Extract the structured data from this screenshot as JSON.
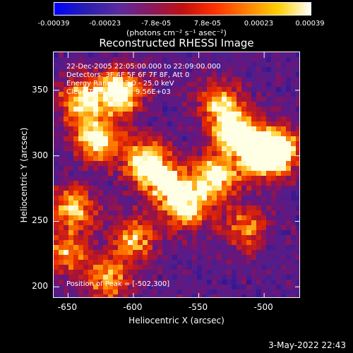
{
  "colorbar": {
    "ticks": [
      "-0.00039",
      "-0.00023",
      "-7.8e-05",
      "7.8e-05",
      "0.00023",
      "0.00039"
    ],
    "units": "(photons cm⁻² s⁻¹ asec⁻²)",
    "colormap": [
      "#0000ff",
      "#2a1fb0",
      "#5a2aa0",
      "#8a1860",
      "#c01010",
      "#ff3000",
      "#ff8000",
      "#ffd000",
      "#ffffff"
    ]
  },
  "chart_data": {
    "type": "heatmap",
    "title": "Reconstructed RHESSI Image",
    "xlabel": "Heliocentric X (arcsec)",
    "ylabel": "Heliocentric Y (arcsec)",
    "xlim": [
      -661,
      -472
    ],
    "ylim": [
      191,
      379
    ],
    "xticks": [
      "-650",
      "-600",
      "-550",
      "-500"
    ],
    "yticks": [
      "200",
      "250",
      "300",
      "350"
    ],
    "peak": [
      -502,
      300
    ],
    "bright_regions": [
      {
        "x": -610,
        "y": 348,
        "intensity": 0.9
      },
      {
        "x": -640,
        "y": 342,
        "intensity": 0.75
      },
      {
        "x": -628,
        "y": 312,
        "intensity": 0.85
      },
      {
        "x": -592,
        "y": 296,
        "intensity": 0.8
      },
      {
        "x": -575,
        "y": 280,
        "intensity": 0.7
      },
      {
        "x": -560,
        "y": 260,
        "intensity": 0.8
      },
      {
        "x": -538,
        "y": 283,
        "intensity": 0.85
      },
      {
        "x": -522,
        "y": 318,
        "intensity": 0.95
      },
      {
        "x": -502,
        "y": 300,
        "intensity": 1.0
      },
      {
        "x": -488,
        "y": 305,
        "intensity": 0.75
      },
      {
        "x": -645,
        "y": 260,
        "intensity": 0.7
      },
      {
        "x": -600,
        "y": 236,
        "intensity": 0.65
      },
      {
        "x": -652,
        "y": 225,
        "intensity": 0.55
      },
      {
        "x": -620,
        "y": 205,
        "intensity": 0.6
      },
      {
        "x": -535,
        "y": 340,
        "intensity": 0.6
      },
      {
        "x": -515,
        "y": 245,
        "intensity": 0.55
      }
    ]
  },
  "info": {
    "line1": "22-Dec-2005 22:05:00.000 to 22:09:00.000",
    "line2": "Detectors: 3F 4F 5F 6F 7F 8F, Att 0",
    "line3": "Energy Range: 12.0 - 25.0 keV",
    "line4": "Clean     Total counts: 9.56E+03",
    "peak_label": "Position of Peak = [-502,300]"
  },
  "footer": "3-May-2022 22:43"
}
